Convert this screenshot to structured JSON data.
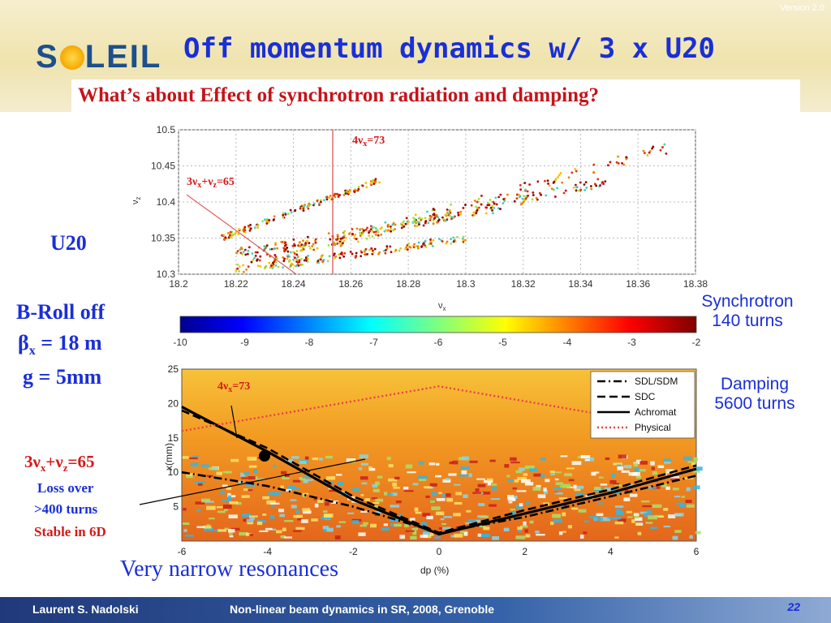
{
  "header": {
    "logo_left": "S",
    "logo_right": "LEIL",
    "version": "Version 2.0",
    "title": "Off momentum dynamics w/ 3 x U20",
    "subtitle": "What’s about Effect of synchrotron radiation and damping?"
  },
  "side_labels": {
    "u20": "U20",
    "broll": "B-Roll off",
    "beta": "β",
    "beta_sub": "x",
    "beta_val": " = 18 m",
    "gap": "g = 5mm",
    "res_main": "3ν",
    "res_sub1": "x",
    "res_plus": "+ν",
    "res_sub2": "z",
    "res_val": "=65",
    "loss_l1": "Loss over",
    "loss_l2": ">400 turns",
    "stable": "Stable in 6D"
  },
  "right_labels": {
    "synchro_l1": "Synchrotron",
    "synchro_l2": "140 turns",
    "damp_l1": "Damping",
    "damp_l2": "5600 turns"
  },
  "bottom_note": "Very narrow resonances",
  "footer": {
    "author": "Laurent S. Nadolski",
    "talk": "Non-linear beam dynamics in SR,  2008, Grenoble",
    "page": "22"
  },
  "chart_data": [
    {
      "type": "scatter",
      "xlabel": "νx",
      "ylabel": "νz",
      "xlim": [
        18.2,
        18.38
      ],
      "ylim": [
        10.3,
        10.5
      ],
      "x_ticks": [
        "18.2",
        "18.22",
        "18.24",
        "18.26",
        "18.28",
        "18.3",
        "18.32",
        "18.34",
        "18.36",
        "18.38"
      ],
      "y_ticks": [
        "10.3",
        "10.35",
        "10.4",
        "10.45",
        "10.5"
      ],
      "grid": true,
      "annotations": [
        {
          "text": "4νx=73",
          "x": 18.245
        },
        {
          "text": "3νx+νz=65"
        }
      ],
      "colorbar": {
        "min": -10,
        "max": -2,
        "ticks": [
          "-10",
          "-9",
          "-8",
          "-7",
          "-6",
          "-5",
          "-4",
          "-3",
          "-2"
        ]
      }
    },
    {
      "type": "heatmap",
      "xlabel": "dp (%)",
      "ylabel": "x(mm)",
      "xlim": [
        -6,
        6
      ],
      "ylim": [
        0,
        25
      ],
      "x_ticks": [
        "-6",
        "-4",
        "-2",
        "0",
        "2",
        "4",
        "6"
      ],
      "y_ticks": [
        "5",
        "10",
        "15",
        "20",
        "25"
      ],
      "legend": {
        "position": "top-right",
        "entries": [
          {
            "name": "SDL/SDM",
            "style": "dash-dot"
          },
          {
            "name": "SDC",
            "style": "dashed"
          },
          {
            "name": "Achromat",
            "style": "solid"
          },
          {
            "name": "Physical",
            "style": "dotted-red"
          }
        ]
      },
      "annotations": [
        {
          "text": "4νx=73"
        }
      ],
      "boundaries": {
        "Achromat": [
          [
            -6,
            19.5
          ],
          [
            -4,
            13
          ],
          [
            -2,
            6
          ],
          [
            0,
            1
          ],
          [
            2,
            4
          ],
          [
            4,
            7
          ],
          [
            6,
            10.5
          ]
        ],
        "SDC": [
          [
            -6,
            19
          ],
          [
            -4,
            13.5
          ],
          [
            -2,
            6.5
          ],
          [
            0,
            1.2
          ],
          [
            2,
            4.5
          ],
          [
            4,
            7.5
          ],
          [
            6,
            11
          ]
        ],
        "SDL/SDM": [
          [
            -6,
            10
          ],
          [
            -4,
            8
          ],
          [
            -2,
            5
          ],
          [
            0,
            1.2
          ],
          [
            2,
            3.5
          ],
          [
            4,
            6.5
          ],
          [
            6,
            9.5
          ]
        ],
        "Physical": [
          [
            -6,
            16
          ],
          [
            0,
            22.5
          ],
          [
            6,
            16
          ]
        ]
      }
    }
  ]
}
